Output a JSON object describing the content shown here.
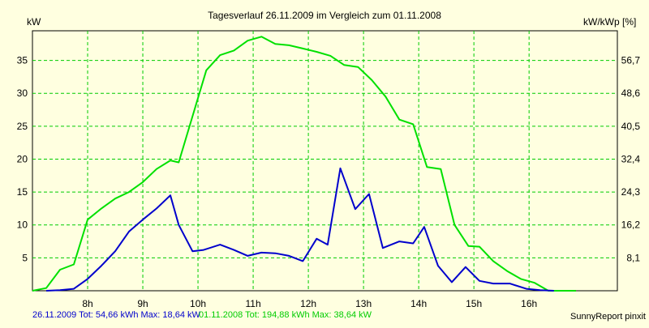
{
  "chart_data": {
    "type": "line",
    "title": "Tagesverlauf 26.11.2009 im Vergleich zum 01.11.2008",
    "ylabel_left": "kW",
    "ylabel_right": "kW/kWp [%]",
    "xlim": [
      7.0,
      17.6
    ],
    "ylim": [
      0,
      39.5
    ],
    "x_ticks": [
      {
        "x": 8,
        "label": "8h"
      },
      {
        "x": 9,
        "label": "9h"
      },
      {
        "x": 10,
        "label": "10h"
      },
      {
        "x": 11,
        "label": "11h"
      },
      {
        "x": 12,
        "label": "12h"
      },
      {
        "x": 13,
        "label": "13h"
      },
      {
        "x": 14,
        "label": "14h"
      },
      {
        "x": 15,
        "label": "15h"
      },
      {
        "x": 16,
        "label": "16h"
      }
    ],
    "y_ticks_left": [
      {
        "y": 5,
        "label": "5"
      },
      {
        "y": 10,
        "label": "10"
      },
      {
        "y": 15,
        "label": "15"
      },
      {
        "y": 20,
        "label": "20"
      },
      {
        "y": 25,
        "label": "25"
      },
      {
        "y": 30,
        "label": "30"
      },
      {
        "y": 35,
        "label": "35"
      }
    ],
    "y_ticks_right": [
      {
        "y": 5,
        "label": "8,1"
      },
      {
        "y": 10,
        "label": "16,2"
      },
      {
        "y": 15,
        "label": "24,3"
      },
      {
        "y": 20,
        "label": "32,4"
      },
      {
        "y": 25,
        "label": "40,5"
      },
      {
        "y": 30,
        "label": "48,6"
      },
      {
        "y": 35,
        "label": "56,7"
      }
    ],
    "grid": true,
    "series": [
      {
        "legend": "26.11.2009 Tot: 54,66 kWh Max: 18,64 kW",
        "color": "#0000cc",
        "x": [
          7.25,
          7.5,
          7.75,
          8.0,
          8.25,
          8.5,
          8.75,
          9.0,
          9.25,
          9.5,
          9.65,
          9.9,
          10.1,
          10.4,
          10.65,
          10.9,
          11.15,
          11.4,
          11.65,
          11.9,
          12.15,
          12.35,
          12.58,
          12.85,
          13.1,
          13.35,
          13.65,
          13.9,
          14.1,
          14.35,
          14.6,
          14.85,
          15.1,
          15.35,
          15.65,
          15.95,
          16.2,
          16.45
        ],
        "y": [
          0,
          0.1,
          0.3,
          1.8,
          3.8,
          6.0,
          9.0,
          10.8,
          12.5,
          14.5,
          10.0,
          6.0,
          6.2,
          7.0,
          6.2,
          5.3,
          5.8,
          5.7,
          5.3,
          4.5,
          7.9,
          7.0,
          18.6,
          12.4,
          14.7,
          6.5,
          7.5,
          7.2,
          9.7,
          3.8,
          1.3,
          3.6,
          1.5,
          1.1,
          1.1,
          0.3,
          0.1,
          0
        ]
      },
      {
        "legend": "01.11.2008 Tot: 194,88 kWh Max: 38,64 kW",
        "color": "#00e000",
        "x": [
          7.0,
          7.25,
          7.5,
          7.75,
          8.0,
          8.25,
          8.5,
          8.75,
          9.0,
          9.25,
          9.5,
          9.65,
          9.9,
          10.15,
          10.4,
          10.65,
          10.9,
          11.15,
          11.4,
          11.65,
          11.9,
          12.15,
          12.4,
          12.65,
          12.9,
          13.15,
          13.4,
          13.65,
          13.9,
          14.15,
          14.4,
          14.65,
          14.9,
          15.1,
          15.35,
          15.6,
          15.85,
          16.1,
          16.35,
          16.6,
          16.85
        ],
        "y": [
          0,
          0.4,
          3.2,
          4.0,
          10.8,
          12.5,
          14.0,
          15.0,
          16.5,
          18.5,
          19.8,
          19.5,
          26.5,
          33.5,
          35.8,
          36.5,
          38.0,
          38.6,
          37.5,
          37.3,
          36.8,
          36.3,
          35.7,
          34.3,
          34.0,
          32.0,
          29.5,
          26.0,
          25.3,
          18.8,
          18.5,
          10.0,
          6.8,
          6.7,
          4.5,
          3.0,
          1.8,
          1.2,
          0,
          0,
          0
        ]
      }
    ],
    "legend_placement": "bottom-left",
    "footer_right": "SunnyReport pinxit"
  }
}
